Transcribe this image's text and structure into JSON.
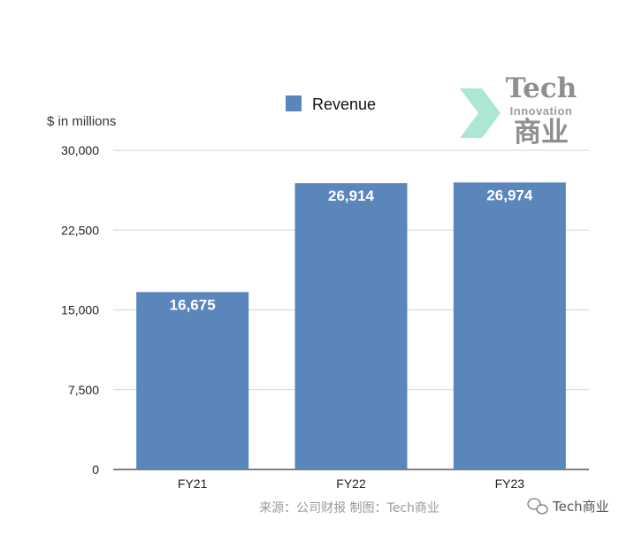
{
  "chart_data": {
    "type": "bar",
    "categories": [
      "FY21",
      "FY22",
      "FY23"
    ],
    "series": [
      {
        "name": "Revenue",
        "values": [
          16675,
          26914,
          26974
        ],
        "labels": [
          "16,675",
          "26,914",
          "26,974"
        ]
      }
    ],
    "ylabel": "$ in millions",
    "ylim": [
      0,
      30000
    ],
    "yticks": [
      0,
      7500,
      15000,
      22500,
      30000
    ],
    "ytick_labels": [
      "0",
      "7,500",
      "15,000",
      "22,500",
      "30,000"
    ],
    "grid": true,
    "legend_position": "top",
    "bar_color": "#5b86bc"
  },
  "source_note": "来源：公司财报 制图：Tech商业",
  "watermark": {
    "line1": "Tech",
    "line2": "Innovation",
    "line3": "商业"
  },
  "brand": {
    "name": "Tech商业",
    "icon": "wechat-icon"
  }
}
